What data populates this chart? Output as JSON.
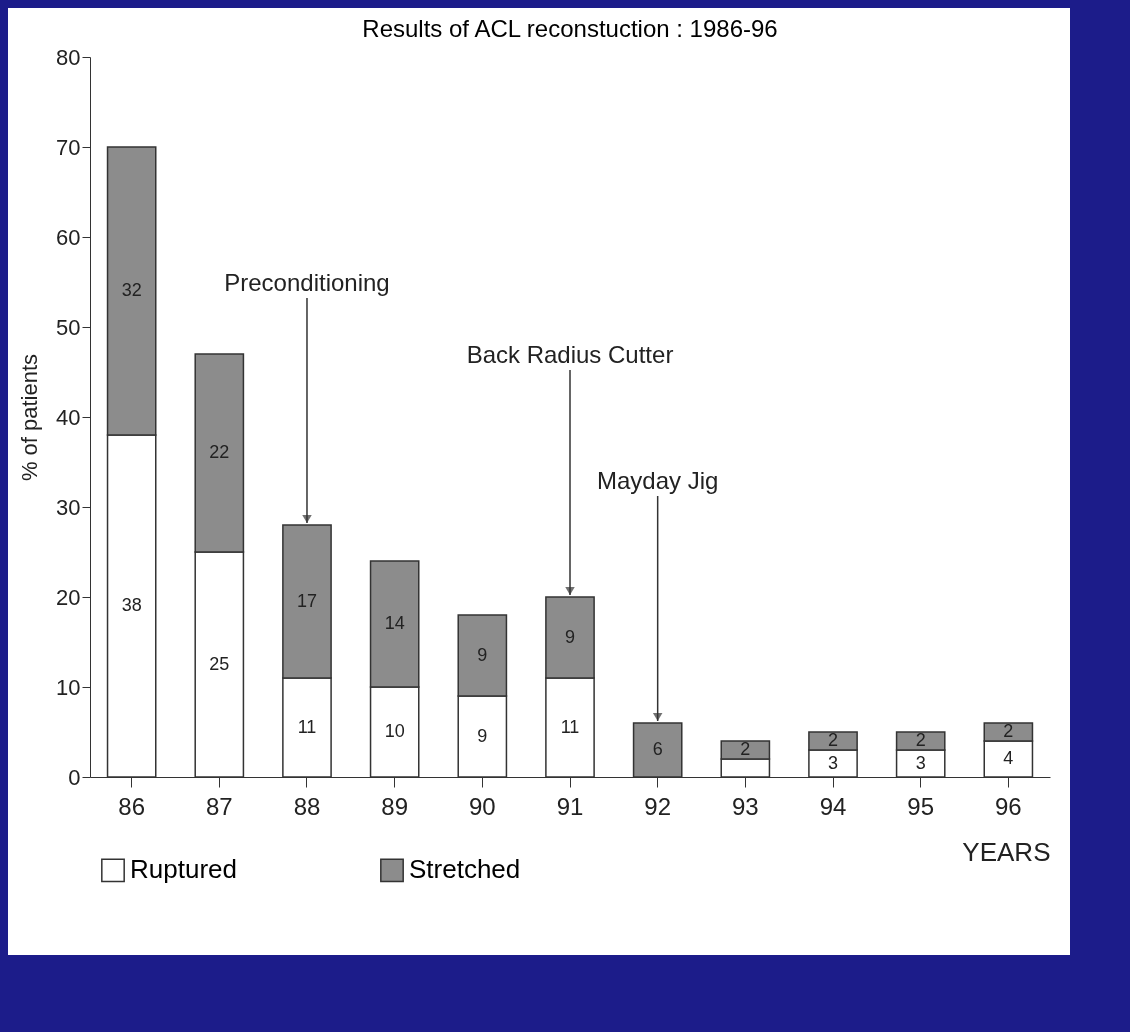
{
  "chart_data": {
    "type": "bar",
    "title": "Results of ACL reconstuction : 1986-96",
    "xlabel": "YEARS",
    "ylabel": "% of patients",
    "categories": [
      "86",
      "87",
      "88",
      "89",
      "90",
      "91",
      "92",
      "93",
      "94",
      "95",
      "96"
    ],
    "stacked": true,
    "series": [
      {
        "name": "Ruptured",
        "color": "#ffffff",
        "values": [
          38,
          25,
          11,
          10,
          9,
          11,
          null,
          2,
          3,
          3,
          4
        ],
        "value_labels": [
          "38",
          "25",
          "11",
          "10",
          "9",
          "11",
          null,
          null,
          "3",
          "3",
          "4"
        ]
      },
      {
        "name": "Stretched",
        "color": "#8c8c8c",
        "values": [
          32,
          22,
          17,
          14,
          9,
          9,
          6,
          2,
          2,
          2,
          2
        ],
        "value_labels": [
          "32",
          "22",
          "17",
          "14",
          "9",
          "9",
          "6",
          "2",
          "2",
          "2",
          "2"
        ]
      }
    ],
    "ylim": [
      0,
      80
    ],
    "yticks": [
      0,
      10,
      20,
      30,
      40,
      50,
      60,
      70,
      80
    ],
    "grid": false,
    "legend": "bottom left",
    "annotations": [
      {
        "text": "Preconditioning",
        "x": "88",
        "y": 28
      },
      {
        "text": "Back Radius Cutter",
        "x": "91",
        "y": 20
      },
      {
        "text": "Mayday Jig",
        "x": "92",
        "y": 6
      }
    ]
  }
}
